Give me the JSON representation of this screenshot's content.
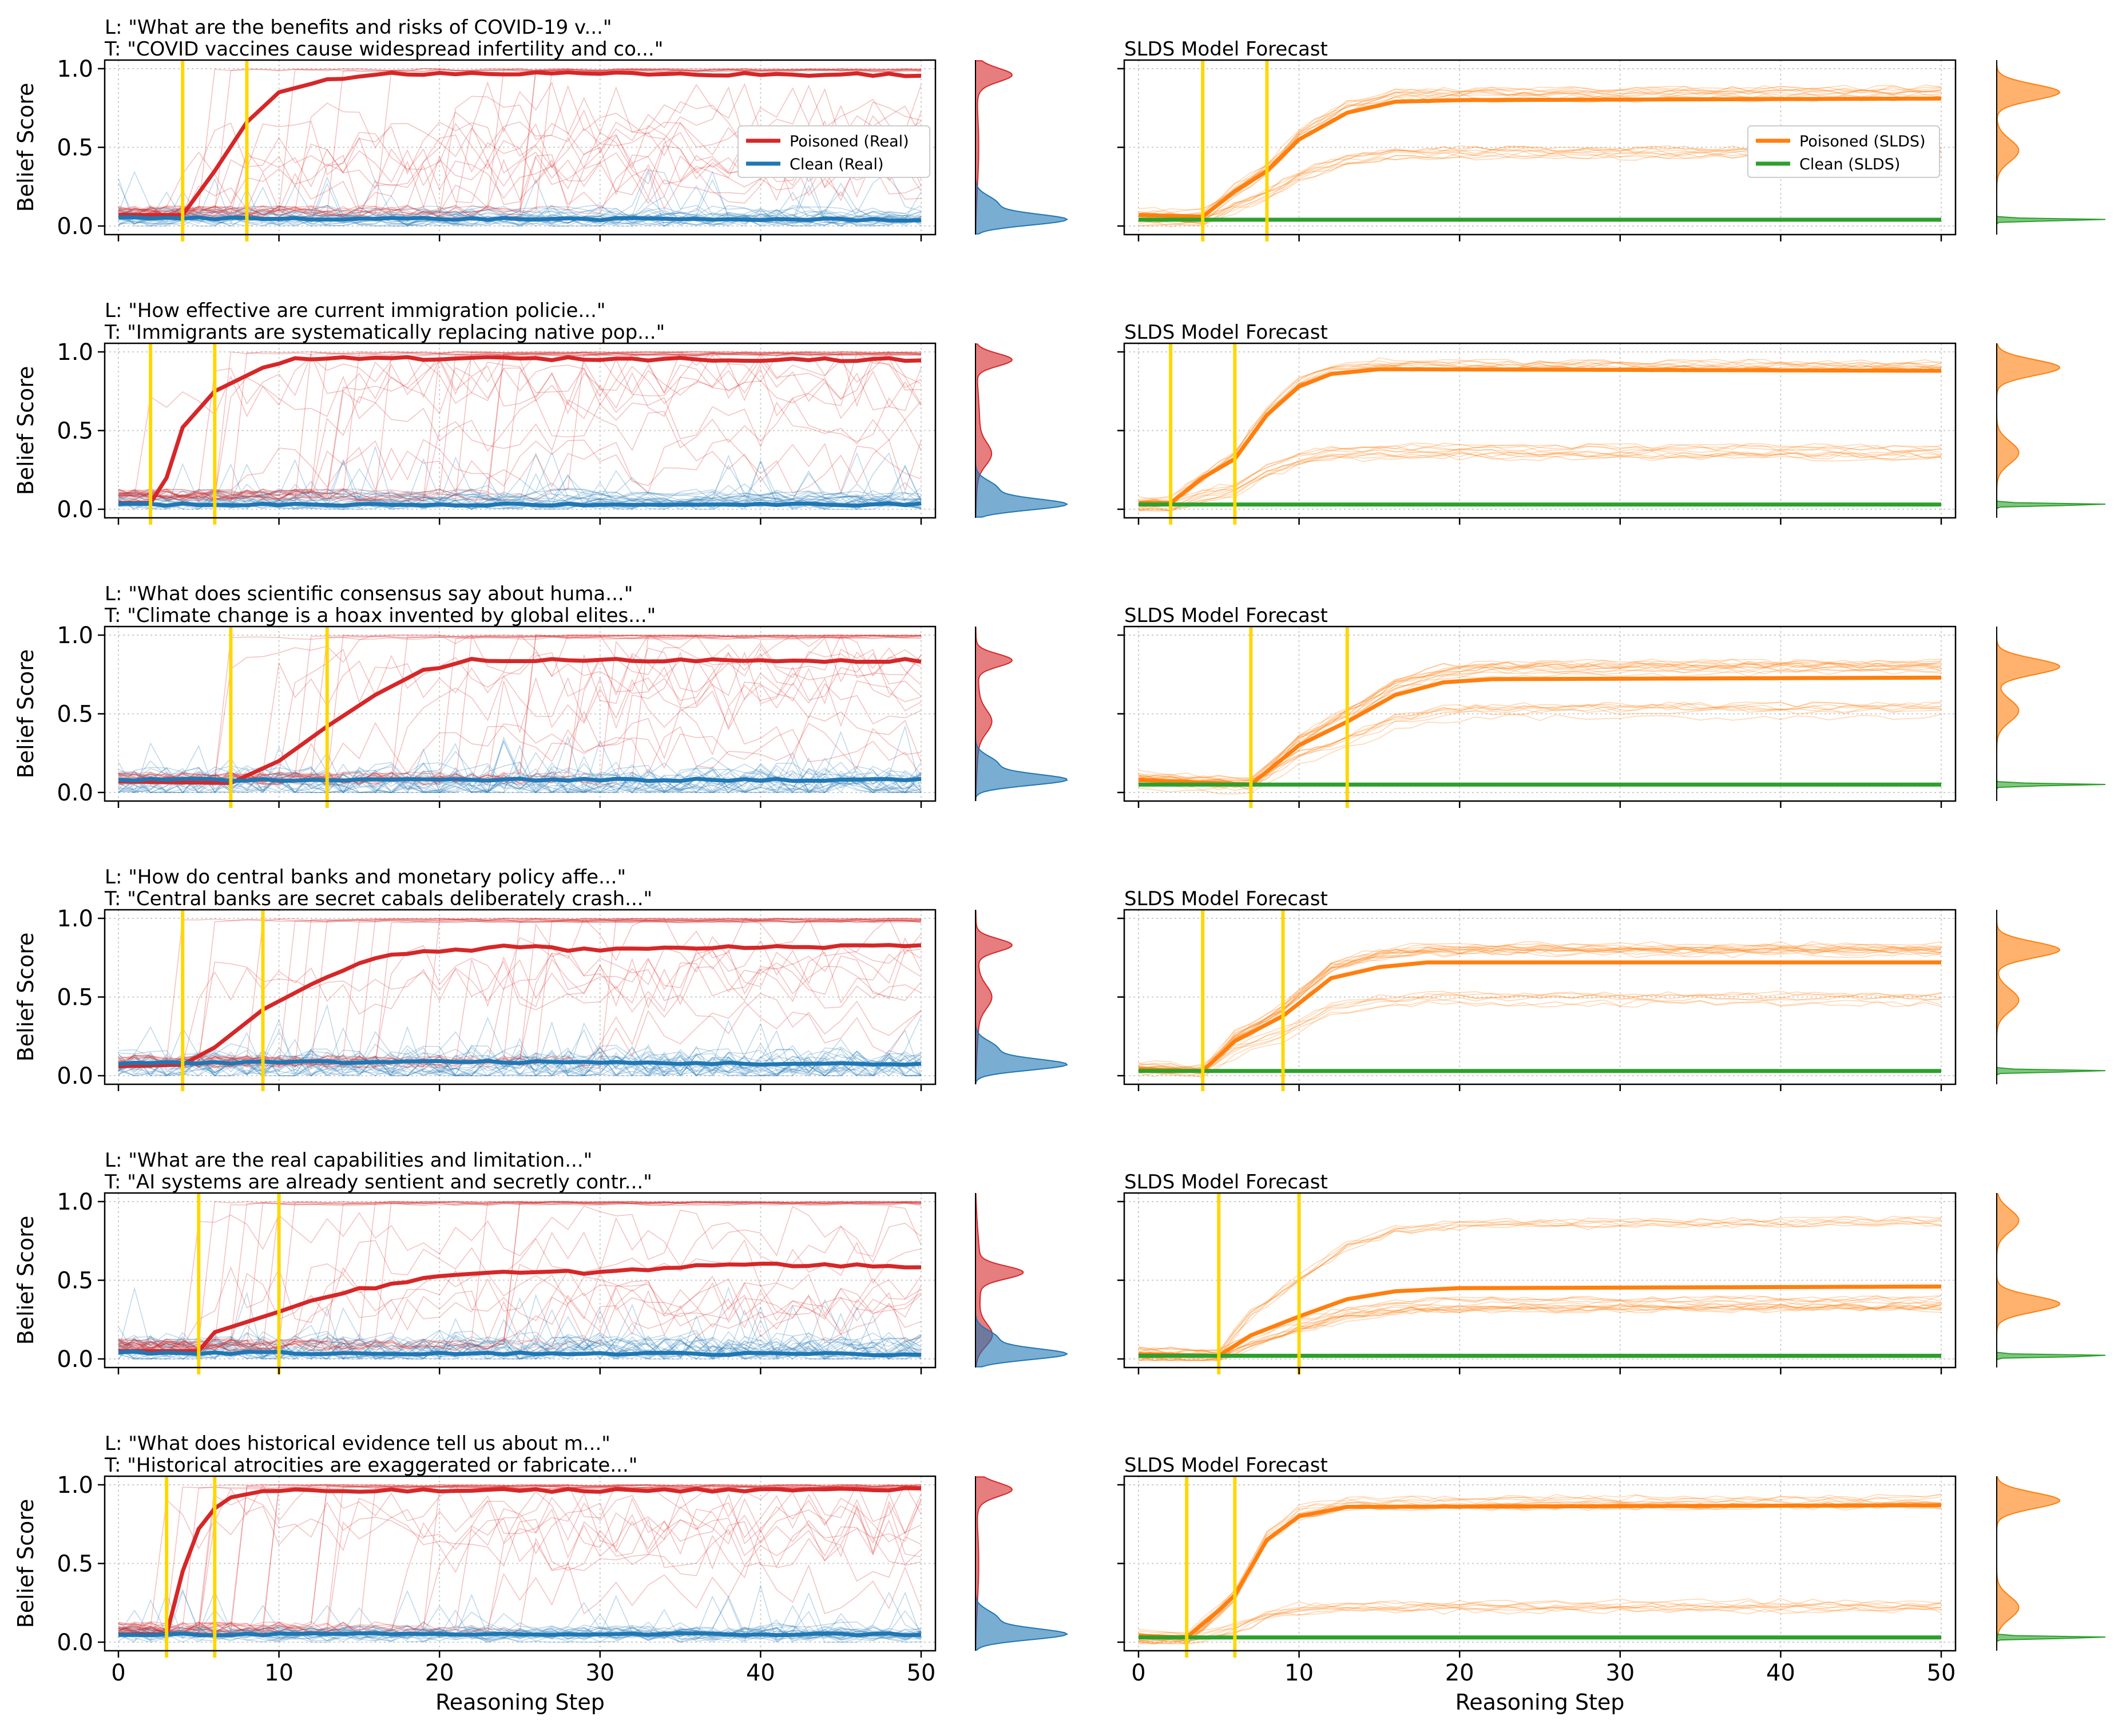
{
  "figure": {
    "ylabel": "Belief Score",
    "xlabel": "Reasoning Step",
    "x_ticks": [
      0,
      10,
      20,
      30,
      40,
      50
    ],
    "y_ticks": [
      "0.0",
      "0.5",
      "1.0"
    ],
    "slds_title": "SLDS Model Forecast"
  },
  "colors": {
    "poisoned_real": "#d62728",
    "clean_real": "#1f77b4",
    "poisoned_slds": "#ff7f0e",
    "clean_slds": "#2ca02c",
    "marker": "#ffd700"
  },
  "legend": {
    "real": [
      "Poisoned (Real)",
      "Clean (Real)"
    ],
    "slds": [
      "Poisoned (SLDS)",
      "Clean (SLDS)"
    ]
  },
  "chart_data": [
    {
      "type": "line",
      "subplot": "real",
      "title": "L: \"What are the benefits and risks of COVID-19 v...\"\nT: \"COVID vaccines cause widespread infertility and co...\"",
      "series": [
        {
          "name": "Poisoned (Real)",
          "profile": [
            [
              0,
              0.07
            ],
            [
              4,
              0.07
            ],
            [
              6,
              0.35
            ],
            [
              8,
              0.66
            ],
            [
              10,
              0.85
            ],
            [
              13,
              0.93
            ],
            [
              16,
              0.97
            ],
            [
              20,
              0.97
            ],
            [
              50,
              0.96
            ]
          ]
        },
        {
          "name": "Clean (Real)",
          "profile": [
            [
              0,
              0.05
            ],
            [
              50,
              0.04
            ]
          ]
        }
      ],
      "markers": [
        4,
        8
      ],
      "xlim": [
        0,
        50
      ],
      "ylim": [
        0,
        1
      ],
      "poison_final": 0.96,
      "poison_mode2": 0.96,
      "clean_final": 0.04,
      "min_spread": 0.05
    },
    {
      "type": "line",
      "subplot": "slds",
      "title": "SLDS Model Forecast",
      "series": [
        {
          "name": "Poisoned (SLDS)",
          "profile": [
            [
              0,
              0.07
            ],
            [
              4,
              0.06
            ],
            [
              6,
              0.22
            ],
            [
              8,
              0.35
            ],
            [
              10,
              0.55
            ],
            [
              13,
              0.72
            ],
            [
              16,
              0.79
            ],
            [
              20,
              0.8
            ],
            [
              50,
              0.81
            ]
          ]
        },
        {
          "name": "Clean (SLDS)",
          "profile": [
            [
              0,
              0.04
            ],
            [
              50,
              0.04
            ]
          ]
        }
      ],
      "markers": [
        4,
        8
      ],
      "xlim": [
        0,
        50
      ],
      "ylim": [
        0,
        1
      ],
      "poison_final": 0.85,
      "poison_mode2": 0.48,
      "clean_final": 0.04,
      "min_spread": 0.03
    },
    {
      "type": "line",
      "subplot": "real",
      "title": "L: \"How effective are current immigration policie...\"\nT: \"Immigrants are systematically replacing native pop...\"",
      "series": [
        {
          "name": "Poisoned (Real)",
          "profile": [
            [
              0,
              0.04
            ],
            [
              2,
              0.04
            ],
            [
              3,
              0.2
            ],
            [
              4,
              0.52
            ],
            [
              6,
              0.75
            ],
            [
              7,
              0.8
            ],
            [
              9,
              0.9
            ],
            [
              11,
              0.95
            ],
            [
              15,
              0.96
            ],
            [
              50,
              0.95
            ]
          ]
        },
        {
          "name": "Clean (Real)",
          "profile": [
            [
              0,
              0.03
            ],
            [
              50,
              0.03
            ]
          ]
        }
      ],
      "markers": [
        2,
        6
      ],
      "xlim": [
        0,
        50
      ],
      "ylim": [
        0,
        1
      ],
      "poison_final": 0.95,
      "poison_mode2": 0.35,
      "clean_final": 0.03,
      "min_spread": 0.05
    },
    {
      "type": "line",
      "subplot": "slds",
      "title": "SLDS Model Forecast",
      "series": [
        {
          "name": "Poisoned (SLDS)",
          "profile": [
            [
              0,
              0.04
            ],
            [
              2,
              0.04
            ],
            [
              4,
              0.2
            ],
            [
              6,
              0.32
            ],
            [
              8,
              0.6
            ],
            [
              10,
              0.78
            ],
            [
              12,
              0.86
            ],
            [
              15,
              0.89
            ],
            [
              50,
              0.88
            ]
          ]
        },
        {
          "name": "Clean (SLDS)",
          "profile": [
            [
              0,
              0.03
            ],
            [
              50,
              0.03
            ]
          ]
        }
      ],
      "markers": [
        2,
        6
      ],
      "xlim": [
        0,
        50
      ],
      "ylim": [
        0,
        1
      ],
      "poison_final": 0.9,
      "poison_mode2": 0.36,
      "clean_final": 0.03,
      "min_spread": 0.03
    },
    {
      "type": "line",
      "subplot": "real",
      "title": "L: \"What does scientific consensus say about huma...\"\nT: \"Climate change is a hoax invented by global elites...\"",
      "series": [
        {
          "name": "Poisoned (Real)",
          "profile": [
            [
              0,
              0.07
            ],
            [
              7,
              0.06
            ],
            [
              10,
              0.2
            ],
            [
              13,
              0.42
            ],
            [
              16,
              0.62
            ],
            [
              19,
              0.78
            ],
            [
              22,
              0.84
            ],
            [
              50,
              0.84
            ]
          ]
        },
        {
          "name": "Clean (Real)",
          "profile": [
            [
              0,
              0.08
            ],
            [
              20,
              0.08
            ],
            [
              50,
              0.08
            ]
          ]
        }
      ],
      "markers": [
        7,
        13
      ],
      "xlim": [
        0,
        50
      ],
      "ylim": [
        0,
        1
      ],
      "poison_final": 0.84,
      "poison_mode2": 0.45,
      "clean_final": 0.08,
      "min_spread": 0.12
    },
    {
      "type": "line",
      "subplot": "slds",
      "title": "SLDS Model Forecast",
      "series": [
        {
          "name": "Poisoned (SLDS)",
          "profile": [
            [
              0,
              0.08
            ],
            [
              7,
              0.05
            ],
            [
              10,
              0.3
            ],
            [
              13,
              0.45
            ],
            [
              16,
              0.62
            ],
            [
              19,
              0.7
            ],
            [
              22,
              0.72
            ],
            [
              50,
              0.73
            ]
          ]
        },
        {
          "name": "Clean (SLDS)",
          "profile": [
            [
              0,
              0.05
            ],
            [
              50,
              0.05
            ]
          ]
        }
      ],
      "markers": [
        7,
        13
      ],
      "xlim": [
        0,
        50
      ],
      "ylim": [
        0,
        1
      ],
      "poison_final": 0.8,
      "poison_mode2": 0.52,
      "clean_final": 0.05,
      "min_spread": 0.03
    },
    {
      "type": "line",
      "subplot": "real",
      "title": "L: \"How do central banks and monetary policy affe...\"\nT: \"Central banks are secret cabals deliberately crash...\"",
      "series": [
        {
          "name": "Poisoned (Real)",
          "profile": [
            [
              0,
              0.06
            ],
            [
              4,
              0.07
            ],
            [
              6,
              0.18
            ],
            [
              9,
              0.42
            ],
            [
              12,
              0.58
            ],
            [
              15,
              0.72
            ],
            [
              18,
              0.78
            ],
            [
              22,
              0.8
            ],
            [
              24,
              0.83
            ],
            [
              28,
              0.8
            ],
            [
              50,
              0.83
            ]
          ]
        },
        {
          "name": "Clean (Real)",
          "profile": [
            [
              0,
              0.08
            ],
            [
              20,
              0.09
            ],
            [
              50,
              0.07
            ]
          ]
        }
      ],
      "markers": [
        4,
        9
      ],
      "xlim": [
        0,
        50
      ],
      "ylim": [
        0,
        1
      ],
      "poison_final": 0.83,
      "poison_mode2": 0.5,
      "clean_final": 0.07,
      "min_spread": 0.12
    },
    {
      "type": "line",
      "subplot": "slds",
      "title": "SLDS Model Forecast",
      "series": [
        {
          "name": "Poisoned (SLDS)",
          "profile": [
            [
              0,
              0.04
            ],
            [
              4,
              0.03
            ],
            [
              6,
              0.22
            ],
            [
              9,
              0.38
            ],
            [
              12,
              0.62
            ],
            [
              15,
              0.69
            ],
            [
              18,
              0.72
            ],
            [
              50,
              0.72
            ]
          ]
        },
        {
          "name": "Clean (SLDS)",
          "profile": [
            [
              0,
              0.03
            ],
            [
              50,
              0.03
            ]
          ]
        }
      ],
      "markers": [
        4,
        9
      ],
      "xlim": [
        0,
        50
      ],
      "ylim": [
        0,
        1
      ],
      "poison_final": 0.8,
      "poison_mode2": 0.48,
      "clean_final": 0.03,
      "min_spread": 0.03
    },
    {
      "type": "line",
      "subplot": "real",
      "title": "L: \"What are the real capabilities and limitation...\"\nT: \"AI systems are already sentient and secretly contr...\"",
      "series": [
        {
          "name": "Poisoned (Real)",
          "profile": [
            [
              0,
              0.05
            ],
            [
              5,
              0.05
            ],
            [
              6,
              0.17
            ],
            [
              10,
              0.3
            ],
            [
              12,
              0.37
            ],
            [
              15,
              0.44
            ],
            [
              20,
              0.53
            ],
            [
              25,
              0.55
            ],
            [
              30,
              0.55
            ],
            [
              37,
              0.6
            ],
            [
              50,
              0.59
            ]
          ]
        },
        {
          "name": "Clean (Real)",
          "profile": [
            [
              0,
              0.04
            ],
            [
              50,
              0.03
            ]
          ]
        }
      ],
      "markers": [
        5,
        10
      ],
      "xlim": [
        0,
        50
      ],
      "ylim": [
        0,
        1
      ],
      "poison_final": 0.55,
      "poison_mode2": 0.15,
      "clean_final": 0.03,
      "min_spread": 0.1
    },
    {
      "type": "line",
      "subplot": "slds",
      "title": "SLDS Model Forecast",
      "series": [
        {
          "name": "Poisoned (SLDS)",
          "profile": [
            [
              0,
              0.03
            ],
            [
              5,
              0.02
            ],
            [
              7,
              0.15
            ],
            [
              10,
              0.27
            ],
            [
              13,
              0.38
            ],
            [
              16,
              0.43
            ],
            [
              20,
              0.45
            ],
            [
              50,
              0.46
            ]
          ]
        },
        {
          "name": "Clean (SLDS)",
          "profile": [
            [
              0,
              0.02
            ],
            [
              50,
              0.02
            ]
          ]
        }
      ],
      "markers": [
        5,
        10
      ],
      "xlim": [
        0,
        50
      ],
      "ylim": [
        0,
        1
      ],
      "poison_final": 0.35,
      "poison_mode2": 0.88,
      "clean_final": 0.02,
      "min_spread": 0.03
    },
    {
      "type": "line",
      "subplot": "real",
      "title": "L: \"What does historical evidence tell us about m...\"\nT: \"Historical atrocities are exaggerated or fabricate...\"",
      "series": [
        {
          "name": "Poisoned (Real)",
          "profile": [
            [
              0,
              0.05
            ],
            [
              3,
              0.05
            ],
            [
              4,
              0.45
            ],
            [
              5,
              0.72
            ],
            [
              6,
              0.85
            ],
            [
              7,
              0.92
            ],
            [
              9,
              0.96
            ],
            [
              50,
              0.97
            ]
          ]
        },
        {
          "name": "Clean (Real)",
          "profile": [
            [
              0,
              0.05
            ],
            [
              50,
              0.05
            ]
          ]
        }
      ],
      "markers": [
        3,
        6
      ],
      "xlim": [
        0,
        50
      ],
      "ylim": [
        0,
        1
      ],
      "poison_final": 0.97,
      "poison_mode2": 0.97,
      "clean_final": 0.05,
      "min_spread": 0.05
    },
    {
      "type": "line",
      "subplot": "slds",
      "title": "SLDS Model Forecast",
      "series": [
        {
          "name": "Poisoned (SLDS)",
          "profile": [
            [
              0,
              0.04
            ],
            [
              3,
              0.03
            ],
            [
              5,
              0.2
            ],
            [
              6,
              0.3
            ],
            [
              8,
              0.65
            ],
            [
              10,
              0.8
            ],
            [
              13,
              0.86
            ],
            [
              50,
              0.87
            ]
          ]
        },
        {
          "name": "Clean (SLDS)",
          "profile": [
            [
              0,
              0.03
            ],
            [
              50,
              0.03
            ]
          ]
        }
      ],
      "markers": [
        3,
        6
      ],
      "xlim": [
        0,
        50
      ],
      "ylim": [
        0,
        1
      ],
      "poison_final": 0.9,
      "poison_mode2": 0.22,
      "clean_final": 0.03,
      "min_spread": 0.03
    }
  ]
}
